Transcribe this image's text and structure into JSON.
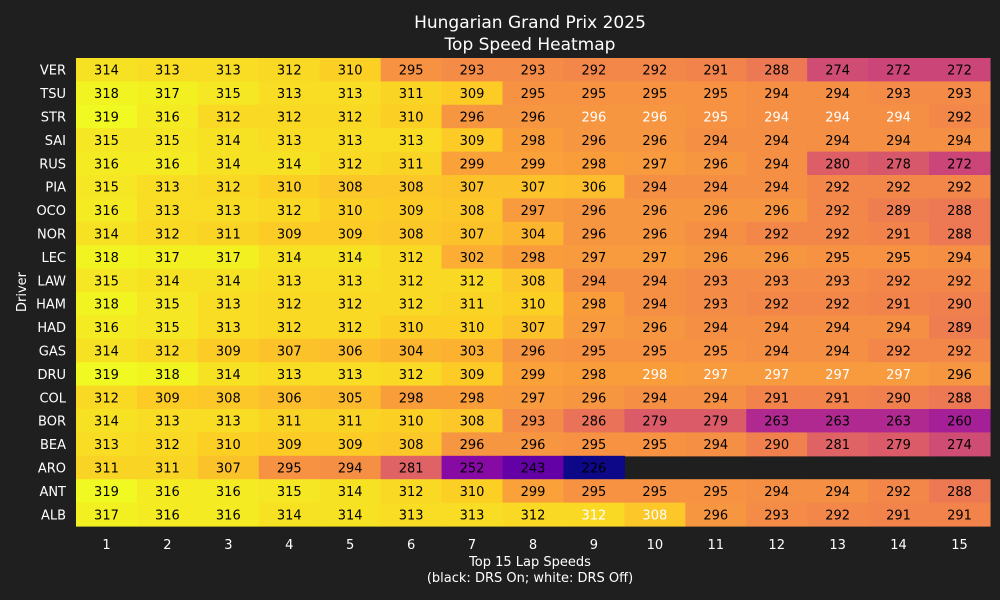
{
  "chart_data": {
    "type": "heatmap",
    "title": "Hungarian Grand Prix 2025",
    "subtitle": "Top Speed Heatmap",
    "xlabel": "Top 15 Lap Speeds",
    "xlabel_note": "(black: DRS On; white: DRS Off)",
    "ylabel": "Driver",
    "colormap": "plasma",
    "value_range": [
      226,
      319
    ],
    "x": [
      "1",
      "2",
      "3",
      "4",
      "5",
      "6",
      "7",
      "8",
      "9",
      "10",
      "11",
      "12",
      "13",
      "14",
      "15"
    ],
    "drivers": [
      "VER",
      "TSU",
      "STR",
      "SAI",
      "RUS",
      "PIA",
      "OCO",
      "NOR",
      "LEC",
      "LAW",
      "HAM",
      "HAD",
      "GAS",
      "DRU",
      "COL",
      "BOR",
      "BEA",
      "ARO",
      "ANT",
      "ALB"
    ],
    "values": [
      [
        314,
        313,
        313,
        312,
        310,
        295,
        293,
        293,
        292,
        292,
        291,
        288,
        274,
        272,
        272
      ],
      [
        318,
        317,
        315,
        313,
        313,
        311,
        309,
        295,
        295,
        295,
        295,
        294,
        294,
        293,
        293
      ],
      [
        319,
        316,
        312,
        312,
        312,
        310,
        296,
        296,
        296,
        296,
        295,
        294,
        294,
        294,
        292
      ],
      [
        315,
        315,
        314,
        313,
        313,
        313,
        309,
        298,
        296,
        296,
        294,
        294,
        294,
        294,
        294
      ],
      [
        316,
        316,
        314,
        314,
        312,
        311,
        299,
        299,
        298,
        297,
        296,
        294,
        280,
        278,
        272
      ],
      [
        315,
        313,
        312,
        310,
        308,
        308,
        307,
        307,
        306,
        294,
        294,
        294,
        292,
        292,
        292
      ],
      [
        316,
        313,
        313,
        312,
        310,
        309,
        308,
        297,
        296,
        296,
        296,
        296,
        292,
        289,
        288
      ],
      [
        314,
        312,
        311,
        309,
        309,
        308,
        307,
        304,
        296,
        296,
        294,
        292,
        292,
        291,
        288
      ],
      [
        318,
        317,
        317,
        314,
        314,
        312,
        302,
        298,
        297,
        297,
        296,
        296,
        295,
        295,
        294
      ],
      [
        315,
        314,
        314,
        313,
        313,
        312,
        312,
        308,
        294,
        294,
        293,
        293,
        293,
        292,
        292
      ],
      [
        318,
        315,
        313,
        312,
        312,
        312,
        311,
        310,
        298,
        294,
        293,
        292,
        292,
        291,
        290
      ],
      [
        316,
        315,
        313,
        312,
        312,
        310,
        310,
        307,
        297,
        296,
        294,
        294,
        294,
        294,
        289
      ],
      [
        314,
        312,
        309,
        307,
        306,
        304,
        303,
        296,
        295,
        295,
        295,
        294,
        294,
        292,
        292
      ],
      [
        319,
        318,
        314,
        313,
        313,
        312,
        309,
        299,
        298,
        298,
        297,
        297,
        297,
        297,
        296
      ],
      [
        312,
        309,
        308,
        306,
        305,
        298,
        298,
        297,
        296,
        294,
        294,
        291,
        291,
        290,
        288
      ],
      [
        314,
        313,
        313,
        311,
        311,
        310,
        308,
        293,
        286,
        279,
        279,
        263,
        263,
        263,
        260
      ],
      [
        313,
        312,
        310,
        309,
        309,
        308,
        296,
        296,
        295,
        295,
        294,
        290,
        281,
        279,
        274
      ],
      [
        311,
        311,
        307,
        295,
        294,
        281,
        252,
        243,
        226,
        null,
        null,
        null,
        null,
        null,
        null
      ],
      [
        319,
        316,
        316,
        315,
        314,
        312,
        310,
        299,
        295,
        295,
        295,
        294,
        294,
        292,
        288
      ],
      [
        317,
        316,
        316,
        314,
        314,
        313,
        313,
        312,
        312,
        308,
        296,
        293,
        292,
        291,
        291
      ]
    ],
    "drs_off": [
      [],
      [],
      [
        8,
        9,
        10,
        11,
        12,
        13
      ],
      [],
      [],
      [],
      [],
      [],
      [],
      [],
      [],
      [],
      [],
      [
        9,
        10,
        11,
        12,
        13
      ],
      [],
      [],
      [],
      [],
      [],
      [
        8,
        9
      ]
    ]
  }
}
